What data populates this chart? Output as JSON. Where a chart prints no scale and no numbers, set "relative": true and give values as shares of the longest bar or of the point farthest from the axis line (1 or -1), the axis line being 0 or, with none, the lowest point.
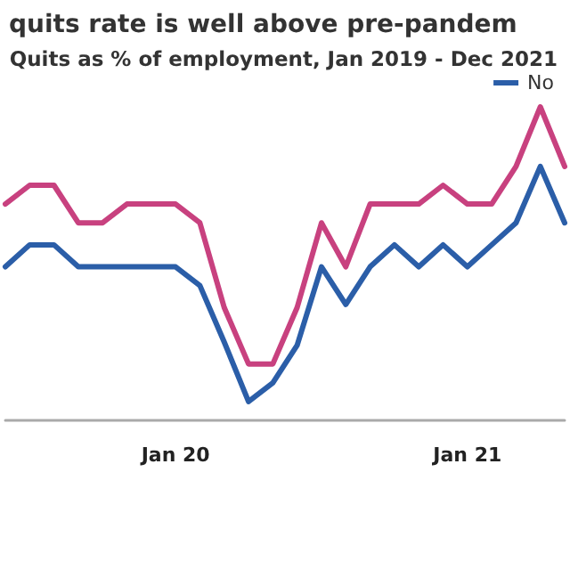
{
  "chart_data": {
    "type": "line",
    "title": "quits rate is well above pre-pandem",
    "subtitle": "Quits as % of employment, Jan 2019 - Dec 2021",
    "categories": [
      null,
      null,
      null,
      null,
      null,
      null,
      null,
      "Jan 20",
      null,
      null,
      null,
      null,
      null,
      null,
      null,
      null,
      null,
      null,
      null,
      "Jan 21",
      null,
      null,
      null,
      null
    ],
    "series": [
      {
        "color": "#c8417f",
        "values": [
          0.69,
          0.75,
          0.75,
          0.63,
          0.63,
          0.69,
          0.69,
          0.69,
          0.63,
          0.36,
          0.18,
          0.18,
          0.36,
          0.63,
          0.49,
          0.69,
          0.69,
          0.69,
          0.75,
          0.69,
          0.69,
          0.81,
          1,
          0.81
        ]
      },
      {
        "name": "No",
        "color": "#2b5ea8",
        "values": [
          0.49,
          0.56,
          0.56,
          0.49,
          0.49,
          0.49,
          0.49,
          0.49,
          0.43,
          0.25,
          0.06,
          0.12,
          0.24,
          0.49,
          0.37,
          0.49,
          0.56,
          0.49,
          0.56,
          0.49,
          0.56,
          0.63,
          0.81,
          0.63
        ]
      }
    ],
    "relative": true,
    "legend": "top right",
    "grid": false,
    "marker": "none",
    "line_style": "solid"
  }
}
